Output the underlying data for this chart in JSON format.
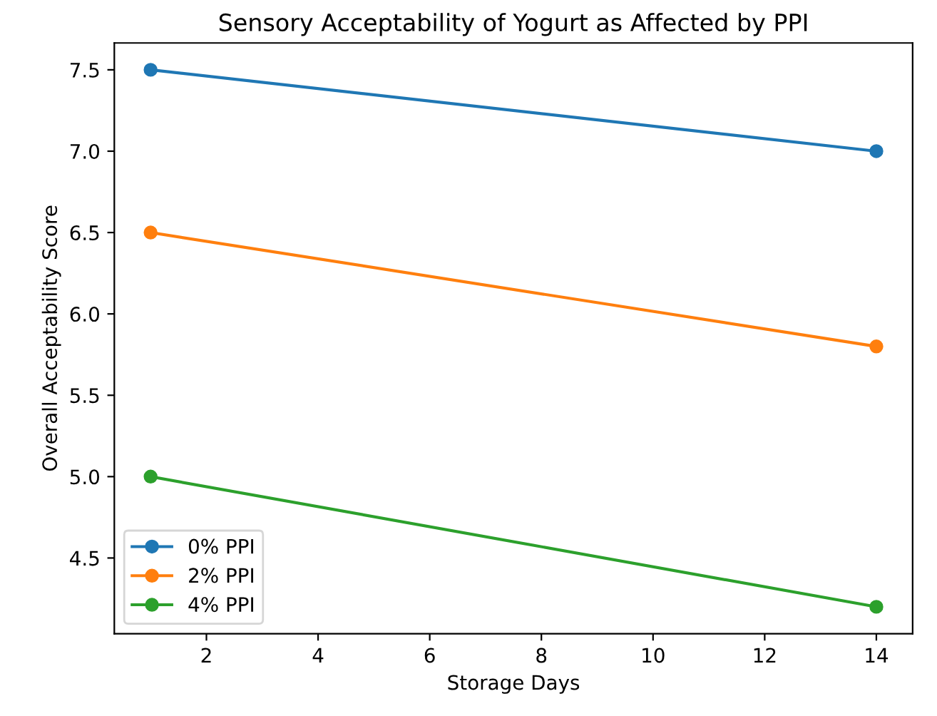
{
  "chart_data": {
    "type": "line",
    "title": "Sensory Acceptability of Yogurt as Affected by PPI",
    "xlabel": "Storage Days",
    "ylabel": "Overall Acceptability Score",
    "x": [
      1,
      14
    ],
    "series": [
      {
        "name": "0% PPI",
        "color": "#1f77b4",
        "values": [
          7.5,
          7.0
        ]
      },
      {
        "name": "2% PPI",
        "color": "#ff7f0e",
        "values": [
          6.5,
          5.8
        ]
      },
      {
        "name": "4% PPI",
        "color": "#2ca02c",
        "values": [
          5.0,
          4.2
        ]
      }
    ],
    "xlim": [
      0.35,
      14.65
    ],
    "ylim": [
      4.035,
      7.665
    ],
    "xticks": [
      2,
      4,
      6,
      8,
      10,
      12,
      14
    ],
    "yticks": [
      {
        "value": 4.5,
        "label": "4.5"
      },
      {
        "value": 5.0,
        "label": "5.0"
      },
      {
        "value": 5.5,
        "label": "5.5"
      },
      {
        "value": 6.0,
        "label": "6.0"
      },
      {
        "value": 6.5,
        "label": "6.5"
      },
      {
        "value": 7.0,
        "label": "7.0"
      },
      {
        "value": 7.5,
        "label": "7.5"
      }
    ],
    "marker": "circle",
    "line_style": "solid",
    "legend": "bottom left",
    "grid": false
  }
}
